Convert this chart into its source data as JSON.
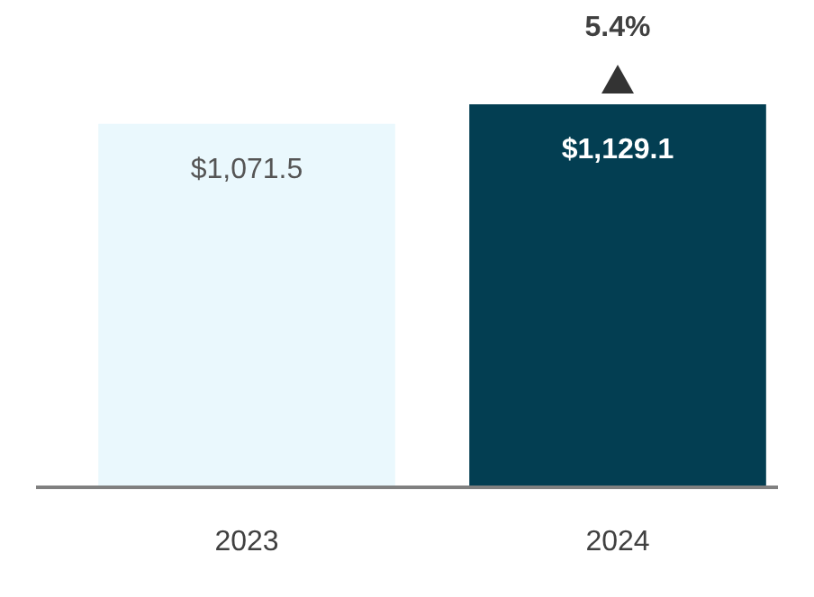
{
  "chart_data": {
    "type": "bar",
    "categories": [
      "2023",
      "2024"
    ],
    "values": [
      1071.5,
      1129.1
    ],
    "colors": [
      "#eaf8fd",
      "#033e52"
    ],
    "value_labels": [
      "$1,071.5",
      "$1,129.1"
    ],
    "annotations": [
      {
        "text": "5.4%",
        "x": "2024",
        "y": 1129.1
      }
    ]
  }
}
